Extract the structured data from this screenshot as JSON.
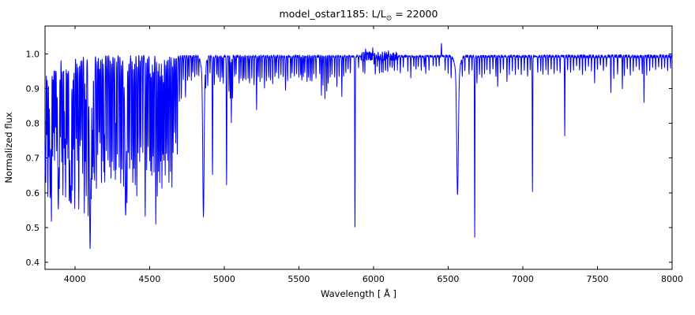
{
  "figure": {
    "title_pre": "model_ostar1185: L/L",
    "title_sub": "⊙",
    "title_post": " = 22000",
    "background": "#ffffff"
  },
  "chart_data": {
    "type": "line",
    "title": "model_ostar1185: L/L⊙ = 22000",
    "xlabel": "Wavelength [ Å ]",
    "ylabel": "Normalized flux",
    "xlim": [
      3800,
      8000
    ],
    "ylim": [
      0.38,
      1.08
    ],
    "xticks": [
      4000,
      4500,
      5000,
      5500,
      6000,
      6500,
      7000,
      7500,
      8000
    ],
    "yticks": [
      0.4,
      0.5,
      0.6,
      0.7,
      0.8,
      0.9,
      1.0
    ],
    "grid": false,
    "legend": false,
    "line_color": "#0000ff",
    "axis_color": "#000000",
    "continuum": 0.993,
    "noise": {
      "seed": 7,
      "base_amp": 0.0035,
      "regions": [
        {
          "range": [
            5915,
            6165
          ],
          "amp": 0.012
        },
        {
          "range": [
            7290,
            8000
          ],
          "amp": 0.0045
        }
      ]
    },
    "emission_spikes": [
      [
        5948,
        0.012,
        1.8
      ],
      [
        5972,
        0.016,
        1.5
      ],
      [
        5996,
        0.02,
        1.5
      ],
      [
        6058,
        0.014,
        1.5
      ],
      [
        6078,
        0.02,
        1.5
      ],
      [
        6100,
        0.012,
        1.5
      ],
      [
        6455,
        0.036,
        1.5
      ]
    ],
    "absorption_lines": [
      [
        3798,
        0.35,
        3.2
      ],
      [
        3798,
        0.05,
        7.0
      ],
      [
        3835,
        0.36,
        3.5
      ],
      [
        3835,
        0.05,
        8.0
      ],
      [
        3889,
        0.39,
        4.0
      ],
      [
        3889,
        0.05,
        9.0
      ],
      [
        3970,
        0.36,
        4.5
      ],
      [
        3970,
        0.06,
        10.0
      ],
      [
        4102,
        0.49,
        4.5
      ],
      [
        4102,
        0.06,
        11.0
      ],
      [
        4340,
        0.4,
        4.5
      ],
      [
        4340,
        0.06,
        12.0
      ],
      [
        4861,
        0.4,
        4.5
      ],
      [
        4861,
        0.06,
        13.0
      ],
      [
        6563,
        0.35,
        5.5
      ],
      [
        6563,
        0.05,
        16.0
      ],
      [
        4026,
        0.44,
        2.0
      ],
      [
        4471,
        0.46,
        2.0
      ],
      [
        4542,
        0.48,
        1.8
      ],
      [
        4686,
        0.28,
        1.8
      ],
      [
        4713,
        0.12,
        1.6
      ],
      [
        4922,
        0.34,
        1.8
      ],
      [
        5016,
        0.37,
        1.8
      ],
      [
        5048,
        0.19,
        1.5
      ],
      [
        5411,
        0.095,
        1.8
      ],
      [
        5876,
        0.49,
        1.6
      ],
      [
        6678,
        0.52,
        1.6
      ],
      [
        7065,
        0.39,
        1.6
      ],
      [
        7281,
        0.23,
        1.5
      ],
      [
        3805,
        0.3,
        1.6
      ],
      [
        3812,
        0.22,
        1.5
      ],
      [
        3819,
        0.4,
        1.8
      ],
      [
        3826,
        0.25,
        1.5
      ],
      [
        3843,
        0.42,
        1.8
      ],
      [
        3851,
        0.28,
        1.5
      ],
      [
        3857,
        0.22,
        1.5
      ],
      [
        3864,
        0.3,
        1.6
      ],
      [
        3871,
        0.2,
        1.5
      ],
      [
        3878,
        0.24,
        1.5
      ],
      [
        3896,
        0.26,
        1.5
      ],
      [
        3903,
        0.22,
        1.5
      ],
      [
        3912,
        0.3,
        1.6
      ],
      [
        3920,
        0.4,
        1.8
      ],
      [
        3928,
        0.26,
        1.5
      ],
      [
        3933,
        0.3,
        1.6
      ],
      [
        3938,
        0.4,
        1.8
      ],
      [
        3946,
        0.25,
        1.5
      ],
      [
        3953,
        0.28,
        1.5
      ],
      [
        3962,
        0.3,
        1.6
      ],
      [
        3976,
        0.22,
        1.5
      ],
      [
        3984,
        0.36,
        1.7
      ],
      [
        3991,
        0.26,
        1.5
      ],
      [
        3999,
        0.44,
        1.8
      ],
      [
        4009,
        0.24,
        1.6
      ],
      [
        4017,
        0.3,
        1.6
      ],
      [
        4035,
        0.26,
        1.5
      ],
      [
        4043,
        0.24,
        1.5
      ],
      [
        4052,
        0.34,
        1.6
      ],
      [
        4063,
        0.45,
        1.8
      ],
      [
        4070,
        0.3,
        1.5
      ],
      [
        4076,
        0.4,
        1.7
      ],
      [
        4089,
        0.42,
        1.8
      ],
      [
        4110,
        0.26,
        1.5
      ],
      [
        4116,
        0.32,
        1.6
      ],
      [
        4121,
        0.3,
        1.6
      ],
      [
        4128,
        0.32,
        1.6
      ],
      [
        4132,
        0.34,
        1.6
      ],
      [
        4144,
        0.38,
        1.8
      ],
      [
        4153,
        0.28,
        1.5
      ],
      [
        4162,
        0.22,
        1.5
      ],
      [
        4169,
        0.25,
        1.5
      ],
      [
        4178,
        0.36,
        1.6
      ],
      [
        4187,
        0.3,
        1.5
      ],
      [
        4195,
        0.33,
        1.6
      ],
      [
        4200,
        0.36,
        1.7
      ],
      [
        4211,
        0.27,
        1.5
      ],
      [
        4222,
        0.3,
        1.5
      ],
      [
        4233,
        0.32,
        1.6
      ],
      [
        4242,
        0.35,
        1.6
      ],
      [
        4250,
        0.3,
        1.5
      ],
      [
        4261,
        0.33,
        1.6
      ],
      [
        4271,
        0.35,
        1.6
      ],
      [
        4276,
        0.32,
        1.5
      ],
      [
        4284,
        0.28,
        1.5
      ],
      [
        4297,
        0.32,
        1.6
      ],
      [
        4307,
        0.36,
        1.6
      ],
      [
        4315,
        0.32,
        1.5
      ],
      [
        4326,
        0.34,
        1.6
      ],
      [
        4349,
        0.32,
        1.6
      ],
      [
        4358,
        0.26,
        1.5
      ],
      [
        4367,
        0.32,
        1.6
      ],
      [
        4379,
        0.3,
        1.5
      ],
      [
        4388,
        0.36,
        1.8
      ],
      [
        4396,
        0.32,
        1.5
      ],
      [
        4404,
        0.37,
        1.6
      ],
      [
        4415,
        0.4,
        1.7
      ],
      [
        4423,
        0.28,
        1.5
      ],
      [
        4434,
        0.3,
        1.5
      ],
      [
        4442,
        0.26,
        1.5
      ],
      [
        4455,
        0.28,
        1.5
      ],
      [
        4481,
        0.33,
        1.6
      ],
      [
        4490,
        0.26,
        1.5
      ],
      [
        4501,
        0.3,
        1.5
      ],
      [
        4508,
        0.33,
        1.5
      ],
      [
        4515,
        0.34,
        1.6
      ],
      [
        4523,
        0.29,
        1.5
      ],
      [
        4530,
        0.33,
        1.5
      ],
      [
        4552,
        0.4,
        1.8
      ],
      [
        4560,
        0.33,
        1.5
      ],
      [
        4568,
        0.36,
        1.6
      ],
      [
        4575,
        0.3,
        1.5
      ],
      [
        4583,
        0.38,
        1.6
      ],
      [
        4590,
        0.28,
        1.5
      ],
      [
        4596,
        0.3,
        1.5
      ],
      [
        4605,
        0.34,
        1.6
      ],
      [
        4613,
        0.28,
        1.5
      ],
      [
        4621,
        0.3,
        1.5
      ],
      [
        4630,
        0.36,
        1.6
      ],
      [
        4640,
        0.33,
        1.6
      ],
      [
        4650,
        0.38,
        1.7
      ],
      [
        4658,
        0.28,
        1.5
      ],
      [
        4667,
        0.22,
        1.5
      ],
      [
        4676,
        0.25,
        1.5
      ],
      [
        4700,
        0.13,
        1.5
      ],
      [
        4726,
        0.07,
        1.4
      ],
      [
        4741,
        0.12,
        1.5
      ],
      [
        4755,
        0.07,
        1.4
      ],
      [
        4765,
        0.06,
        1.4
      ],
      [
        4780,
        0.07,
        1.4
      ],
      [
        4790,
        0.05,
        1.4
      ],
      [
        4803,
        0.06,
        1.4
      ],
      [
        4817,
        0.05,
        1.4
      ],
      [
        4830,
        0.05,
        1.4
      ],
      [
        4876,
        0.06,
        1.4
      ],
      [
        4890,
        0.08,
        1.4
      ],
      [
        4905,
        0.05,
        1.4
      ],
      [
        4934,
        0.08,
        1.4
      ],
      [
        4950,
        0.05,
        1.4
      ],
      [
        4960,
        0.06,
        1.4
      ],
      [
        4973,
        0.07,
        1.4
      ],
      [
        4985,
        0.06,
        1.4
      ],
      [
        4994,
        0.08,
        1.4
      ],
      [
        5032,
        0.1,
        1.4
      ],
      [
        5041,
        0.12,
        1.4
      ],
      [
        5056,
        0.12,
        1.4
      ],
      [
        5070,
        0.06,
        1.4
      ],
      [
        5080,
        0.05,
        1.4
      ],
      [
        5100,
        0.08,
        1.4
      ],
      [
        5112,
        0.06,
        1.4
      ],
      [
        5125,
        0.07,
        1.4
      ],
      [
        5133,
        0.06,
        1.4
      ],
      [
        5145,
        0.07,
        1.4
      ],
      [
        5160,
        0.06,
        1.4
      ],
      [
        5170,
        0.08,
        1.4
      ],
      [
        5185,
        0.06,
        1.4
      ],
      [
        5200,
        0.08,
        1.4
      ],
      [
        5217,
        0.155,
        1.5
      ],
      [
        5228,
        0.06,
        1.4
      ],
      [
        5240,
        0.07,
        1.4
      ],
      [
        5253,
        0.06,
        1.4
      ],
      [
        5270,
        0.09,
        1.4
      ],
      [
        5283,
        0.07,
        1.4
      ],
      [
        5298,
        0.06,
        1.4
      ],
      [
        5310,
        0.07,
        1.4
      ],
      [
        5325,
        0.08,
        1.4
      ],
      [
        5340,
        0.06,
        1.4
      ],
      [
        5350,
        0.05,
        1.4
      ],
      [
        5365,
        0.06,
        1.4
      ],
      [
        5380,
        0.05,
        1.4
      ],
      [
        5395,
        0.06,
        1.4
      ],
      [
        5425,
        0.07,
        1.4
      ],
      [
        5445,
        0.06,
        1.4
      ],
      [
        5455,
        0.05,
        1.4
      ],
      [
        5470,
        0.06,
        1.4
      ],
      [
        5485,
        0.05,
        1.4
      ],
      [
        5500,
        0.06,
        1.4
      ],
      [
        5512,
        0.05,
        1.4
      ],
      [
        5520,
        0.07,
        1.4
      ],
      [
        5530,
        0.06,
        1.4
      ],
      [
        5540,
        0.05,
        1.4
      ],
      [
        5555,
        0.07,
        1.4
      ],
      [
        5565,
        0.06,
        1.4
      ],
      [
        5577,
        0.07,
        1.4
      ],
      [
        5588,
        0.07,
        1.4
      ],
      [
        5600,
        0.05,
        1.4
      ],
      [
        5615,
        0.06,
        1.4
      ],
      [
        5640,
        0.05,
        1.4
      ],
      [
        5651,
        0.11,
        1.4
      ],
      [
        5662,
        0.08,
        1.4
      ],
      [
        5675,
        0.12,
        1.4
      ],
      [
        5687,
        0.1,
        1.4
      ],
      [
        5697,
        0.08,
        1.4
      ],
      [
        5710,
        0.06,
        1.4
      ],
      [
        5722,
        0.05,
        1.4
      ],
      [
        5740,
        0.06,
        1.4
      ],
      [
        5755,
        0.09,
        1.4
      ],
      [
        5770,
        0.06,
        1.4
      ],
      [
        5788,
        0.115,
        1.4
      ],
      [
        5800,
        0.06,
        1.4
      ],
      [
        5815,
        0.05,
        1.4
      ],
      [
        5830,
        0.04,
        1.4
      ],
      [
        5845,
        0.05,
        1.4
      ],
      [
        5900,
        0.03,
        1.4
      ],
      [
        5930,
        0.05,
        1.4
      ],
      [
        5942,
        0.04,
        1.4
      ],
      [
        6004,
        0.03,
        1.4
      ],
      [
        6012,
        0.04,
        1.4
      ],
      [
        6025,
        0.03,
        1.4
      ],
      [
        6040,
        0.04,
        1.4
      ],
      [
        6055,
        0.05,
        1.4
      ],
      [
        6065,
        0.04,
        1.4
      ],
      [
        6080,
        0.05,
        1.4
      ],
      [
        6095,
        0.04,
        1.4
      ],
      [
        6110,
        0.03,
        1.4
      ],
      [
        6125,
        0.03,
        1.4
      ],
      [
        6140,
        0.04,
        1.4
      ],
      [
        6160,
        0.03,
        1.4
      ],
      [
        6180,
        0.05,
        1.4
      ],
      [
        6200,
        0.03,
        1.4
      ],
      [
        6230,
        0.04,
        1.4
      ],
      [
        6250,
        0.06,
        1.4
      ],
      [
        6270,
        0.03,
        1.4
      ],
      [
        6285,
        0.04,
        1.4
      ],
      [
        6300,
        0.03,
        1.4
      ],
      [
        6320,
        0.04,
        1.4
      ],
      [
        6340,
        0.03,
        1.4
      ],
      [
        6350,
        0.05,
        1.4
      ],
      [
        6372,
        0.04,
        1.4
      ],
      [
        6400,
        0.03,
        1.4
      ],
      [
        6420,
        0.03,
        1.4
      ],
      [
        6440,
        0.03,
        1.4
      ],
      [
        6480,
        0.04,
        1.4
      ],
      [
        6500,
        0.05,
        1.4
      ],
      [
        6520,
        0.06,
        1.4
      ],
      [
        6595,
        0.05,
        1.4
      ],
      [
        6612,
        0.04,
        1.4
      ],
      [
        6640,
        0.05,
        1.4
      ],
      [
        6660,
        0.04,
        1.4
      ],
      [
        6693,
        0.08,
        1.4
      ],
      [
        6710,
        0.05,
        1.4
      ],
      [
        6726,
        0.06,
        1.4
      ],
      [
        6744,
        0.05,
        1.4
      ],
      [
        6760,
        0.04,
        1.4
      ],
      [
        6780,
        0.05,
        1.4
      ],
      [
        6800,
        0.04,
        1.4
      ],
      [
        6820,
        0.06,
        1.4
      ],
      [
        6832,
        0.09,
        1.4
      ],
      [
        6850,
        0.05,
        1.4
      ],
      [
        6870,
        0.04,
        1.4
      ],
      [
        6894,
        0.07,
        1.4
      ],
      [
        6910,
        0.05,
        1.4
      ],
      [
        6930,
        0.04,
        1.4
      ],
      [
        6950,
        0.05,
        1.4
      ],
      [
        6970,
        0.04,
        1.4
      ],
      [
        6990,
        0.05,
        1.4
      ],
      [
        7010,
        0.04,
        1.4
      ],
      [
        7032,
        0.06,
        1.4
      ],
      [
        7050,
        0.04,
        1.4
      ],
      [
        7100,
        0.05,
        1.4
      ],
      [
        7120,
        0.04,
        1.4
      ],
      [
        7135,
        0.05,
        1.4
      ],
      [
        7155,
        0.04,
        1.4
      ],
      [
        7170,
        0.05,
        1.4
      ],
      [
        7190,
        0.04,
        1.4
      ],
      [
        7210,
        0.05,
        1.4
      ],
      [
        7230,
        0.04,
        1.4
      ],
      [
        7250,
        0.05,
        1.4
      ],
      [
        7300,
        0.04,
        1.4
      ],
      [
        7320,
        0.05,
        1.4
      ],
      [
        7340,
        0.04,
        1.4
      ],
      [
        7360,
        0.03,
        1.4
      ],
      [
        7380,
        0.04,
        1.4
      ],
      [
        7400,
        0.05,
        1.4
      ],
      [
        7420,
        0.04,
        1.4
      ],
      [
        7440,
        0.03,
        1.4
      ],
      [
        7460,
        0.04,
        1.4
      ],
      [
        7481,
        0.08,
        1.4
      ],
      [
        7500,
        0.04,
        1.4
      ],
      [
        7520,
        0.03,
        1.4
      ],
      [
        7540,
        0.04,
        1.4
      ],
      [
        7560,
        0.03,
        1.4
      ],
      [
        7590,
        0.1,
        1.4
      ],
      [
        7610,
        0.06,
        1.4
      ],
      [
        7635,
        0.05,
        1.4
      ],
      [
        7667,
        0.09,
        1.4
      ],
      [
        7680,
        0.06,
        1.4
      ],
      [
        7700,
        0.04,
        1.4
      ],
      [
        7720,
        0.05,
        1.4
      ],
      [
        7740,
        0.04,
        1.4
      ],
      [
        7760,
        0.03,
        1.4
      ],
      [
        7780,
        0.04,
        1.4
      ],
      [
        7800,
        0.05,
        1.4
      ],
      [
        7812,
        0.13,
        1.4
      ],
      [
        7830,
        0.05,
        1.4
      ],
      [
        7850,
        0.04,
        1.4
      ],
      [
        7870,
        0.03,
        1.4
      ],
      [
        7890,
        0.04,
        1.4
      ],
      [
        7910,
        0.03,
        1.4
      ],
      [
        7930,
        0.04,
        1.4
      ],
      [
        7950,
        0.03,
        1.4
      ],
      [
        7970,
        0.04,
        1.4
      ],
      [
        7990,
        0.03,
        1.4
      ]
    ]
  }
}
